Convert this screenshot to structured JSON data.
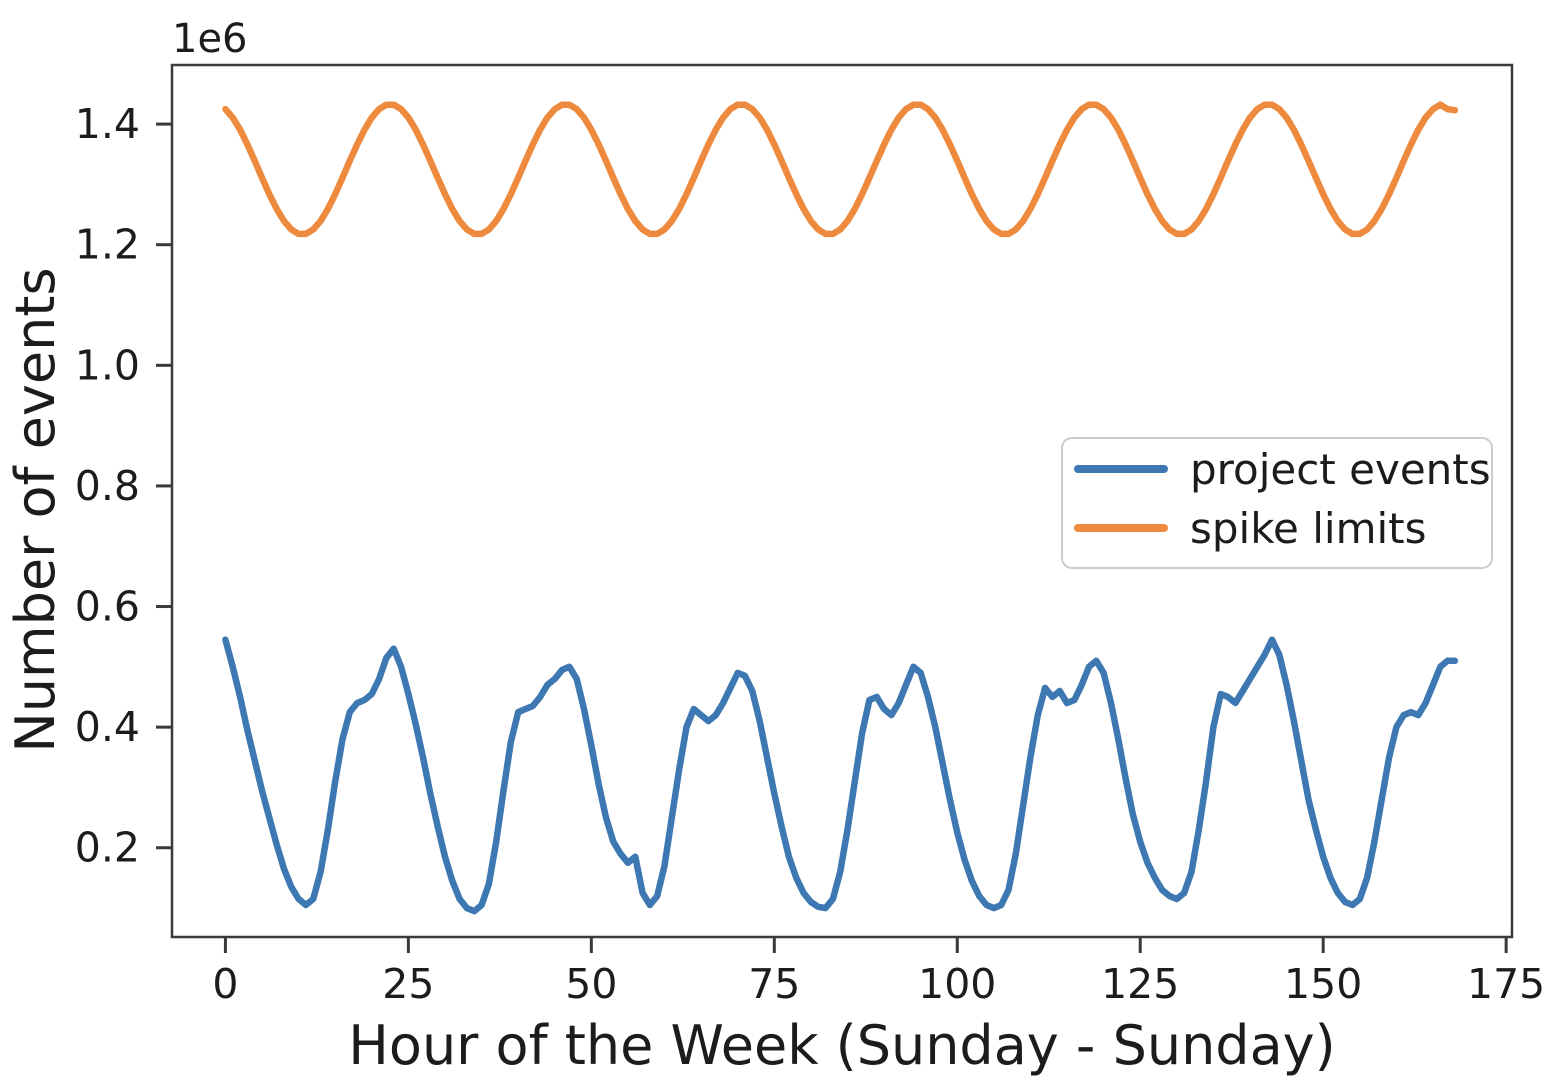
{
  "figure": {
    "background": "#ffffff",
    "spine_color": "#3a3a3a",
    "text_color": "#1c1c1c"
  },
  "chart_data": {
    "type": "line",
    "title": "",
    "xlabel": "Hour of the Week (Sunday - Sunday)",
    "ylabel": "Number of events",
    "offset_text": "1e6",
    "y_multiplier": 1000000,
    "grid": false,
    "xlim": [
      -7.3,
      175.8
    ],
    "ylim": [
      0.052,
      1.498
    ],
    "x_ticks": [
      0,
      25,
      50,
      75,
      100,
      125,
      150,
      175
    ],
    "x_tick_labels": [
      "0",
      "25",
      "50",
      "75",
      "100",
      "125",
      "150",
      "175"
    ],
    "y_ticks": [
      0.2,
      0.4,
      0.6,
      0.8,
      1.0,
      1.2,
      1.4
    ],
    "y_tick_labels": [
      "0.2",
      "0.4",
      "0.6",
      "0.8",
      "1.0",
      "1.2",
      "1.4"
    ],
    "legend": {
      "position": "center right",
      "entries": [
        {
          "label": "project events",
          "color": "#3d78b2"
        },
        {
          "label": "spike limits",
          "color": "#ee8a3d"
        }
      ]
    },
    "x": [
      0,
      1,
      2,
      3,
      4,
      5,
      6,
      7,
      8,
      9,
      10,
      11,
      12,
      13,
      14,
      15,
      16,
      17,
      18,
      19,
      20,
      21,
      22,
      23,
      24,
      25,
      26,
      27,
      28,
      29,
      30,
      31,
      32,
      33,
      34,
      35,
      36,
      37,
      38,
      39,
      40,
      41,
      42,
      43,
      44,
      45,
      46,
      47,
      48,
      49,
      50,
      51,
      52,
      53,
      54,
      55,
      56,
      57,
      58,
      59,
      60,
      61,
      62,
      63,
      64,
      65,
      66,
      67,
      68,
      69,
      70,
      71,
      72,
      73,
      74,
      75,
      76,
      77,
      78,
      79,
      80,
      81,
      82,
      83,
      84,
      85,
      86,
      87,
      88,
      89,
      90,
      91,
      92,
      93,
      94,
      95,
      96,
      97,
      98,
      99,
      100,
      101,
      102,
      103,
      104,
      105,
      106,
      107,
      108,
      109,
      110,
      111,
      112,
      113,
      114,
      115,
      116,
      117,
      118,
      119,
      120,
      121,
      122,
      123,
      124,
      125,
      126,
      127,
      128,
      129,
      130,
      131,
      132,
      133,
      134,
      135,
      136,
      137,
      138,
      139,
      140,
      141,
      142,
      143,
      144,
      145,
      146,
      147,
      148,
      149,
      150,
      151,
      152,
      153,
      154,
      155,
      156,
      157,
      158,
      159,
      160,
      161,
      162,
      163,
      164,
      165,
      166,
      167,
      168
    ],
    "series": [
      {
        "name": "project events",
        "color": "#3d78b2",
        "values": [
          0.545,
          0.5,
          0.45,
          0.395,
          0.345,
          0.295,
          0.25,
          0.205,
          0.165,
          0.135,
          0.115,
          0.105,
          0.115,
          0.16,
          0.23,
          0.31,
          0.38,
          0.425,
          0.44,
          0.445,
          0.455,
          0.48,
          0.515,
          0.53,
          0.5,
          0.455,
          0.405,
          0.35,
          0.29,
          0.235,
          0.185,
          0.145,
          0.115,
          0.1,
          0.095,
          0.105,
          0.14,
          0.21,
          0.295,
          0.375,
          0.425,
          0.43,
          0.435,
          0.45,
          0.47,
          0.48,
          0.495,
          0.5,
          0.48,
          0.43,
          0.37,
          0.305,
          0.25,
          0.21,
          0.19,
          0.175,
          0.185,
          0.125,
          0.105,
          0.12,
          0.17,
          0.25,
          0.33,
          0.4,
          0.43,
          0.42,
          0.41,
          0.42,
          0.44,
          0.465,
          0.49,
          0.485,
          0.46,
          0.41,
          0.35,
          0.29,
          0.235,
          0.185,
          0.15,
          0.125,
          0.11,
          0.102,
          0.1,
          0.115,
          0.16,
          0.23,
          0.31,
          0.39,
          0.445,
          0.45,
          0.43,
          0.42,
          0.44,
          0.47,
          0.5,
          0.49,
          0.45,
          0.4,
          0.34,
          0.28,
          0.225,
          0.18,
          0.145,
          0.12,
          0.105,
          0.1,
          0.105,
          0.13,
          0.19,
          0.27,
          0.35,
          0.42,
          0.465,
          0.45,
          0.46,
          0.44,
          0.445,
          0.47,
          0.5,
          0.51,
          0.49,
          0.44,
          0.38,
          0.315,
          0.255,
          0.21,
          0.175,
          0.15,
          0.13,
          0.12,
          0.115,
          0.125,
          0.16,
          0.23,
          0.31,
          0.4,
          0.455,
          0.45,
          0.44,
          0.46,
          0.48,
          0.5,
          0.52,
          0.545,
          0.52,
          0.47,
          0.41,
          0.345,
          0.28,
          0.23,
          0.185,
          0.15,
          0.125,
          0.11,
          0.105,
          0.115,
          0.15,
          0.21,
          0.28,
          0.35,
          0.4,
          0.42,
          0.425,
          0.42,
          0.44,
          0.47,
          0.5,
          0.51,
          0.51
        ]
      },
      {
        "name": "spike limits",
        "color": "#ee8a3d",
        "values": [
          1.4248,
          1.4107,
          1.3907,
          1.3663,
          1.3391,
          1.3109,
          1.2837,
          1.2593,
          1.2393,
          1.2252,
          1.2179,
          1.2179,
          1.2252,
          1.2393,
          1.2593,
          1.2837,
          1.3109,
          1.3391,
          1.3663,
          1.3907,
          1.4107,
          1.4248,
          1.4321,
          1.4321,
          1.4248,
          1.4107,
          1.3907,
          1.3663,
          1.3391,
          1.3109,
          1.2837,
          1.2593,
          1.2393,
          1.2252,
          1.2179,
          1.2179,
          1.2252,
          1.2393,
          1.2593,
          1.2837,
          1.3109,
          1.3391,
          1.3663,
          1.3907,
          1.4107,
          1.4248,
          1.4321,
          1.4321,
          1.4248,
          1.4107,
          1.3907,
          1.3663,
          1.3391,
          1.3109,
          1.2837,
          1.2593,
          1.2393,
          1.2252,
          1.2179,
          1.2179,
          1.2252,
          1.2393,
          1.2593,
          1.2837,
          1.3109,
          1.3391,
          1.3663,
          1.3907,
          1.4107,
          1.4248,
          1.4321,
          1.4321,
          1.4248,
          1.4107,
          1.3907,
          1.3663,
          1.3391,
          1.3109,
          1.2837,
          1.2593,
          1.2393,
          1.2252,
          1.2179,
          1.2179,
          1.2252,
          1.2393,
          1.2593,
          1.2837,
          1.3109,
          1.3391,
          1.3663,
          1.3907,
          1.4107,
          1.4248,
          1.4321,
          1.4321,
          1.4248,
          1.4107,
          1.3907,
          1.3663,
          1.3391,
          1.3109,
          1.2837,
          1.2593,
          1.2393,
          1.2252,
          1.2179,
          1.2179,
          1.2252,
          1.2393,
          1.2593,
          1.2837,
          1.3109,
          1.3391,
          1.3663,
          1.3907,
          1.4107,
          1.4248,
          1.4321,
          1.4321,
          1.4248,
          1.4107,
          1.3907,
          1.3663,
          1.3391,
          1.3109,
          1.2837,
          1.2593,
          1.2393,
          1.2252,
          1.2179,
          1.2179,
          1.2252,
          1.2393,
          1.2593,
          1.2837,
          1.3109,
          1.3391,
          1.3663,
          1.3907,
          1.4107,
          1.4248,
          1.4321,
          1.4321,
          1.4248,
          1.4107,
          1.3907,
          1.3663,
          1.3391,
          1.3109,
          1.2837,
          1.2593,
          1.2393,
          1.2252,
          1.2179,
          1.2179,
          1.2252,
          1.2393,
          1.2593,
          1.2837,
          1.3109,
          1.3391,
          1.3663,
          1.3907,
          1.4107,
          1.4248,
          1.4321,
          1.4248,
          1.423
        ]
      }
    ]
  }
}
